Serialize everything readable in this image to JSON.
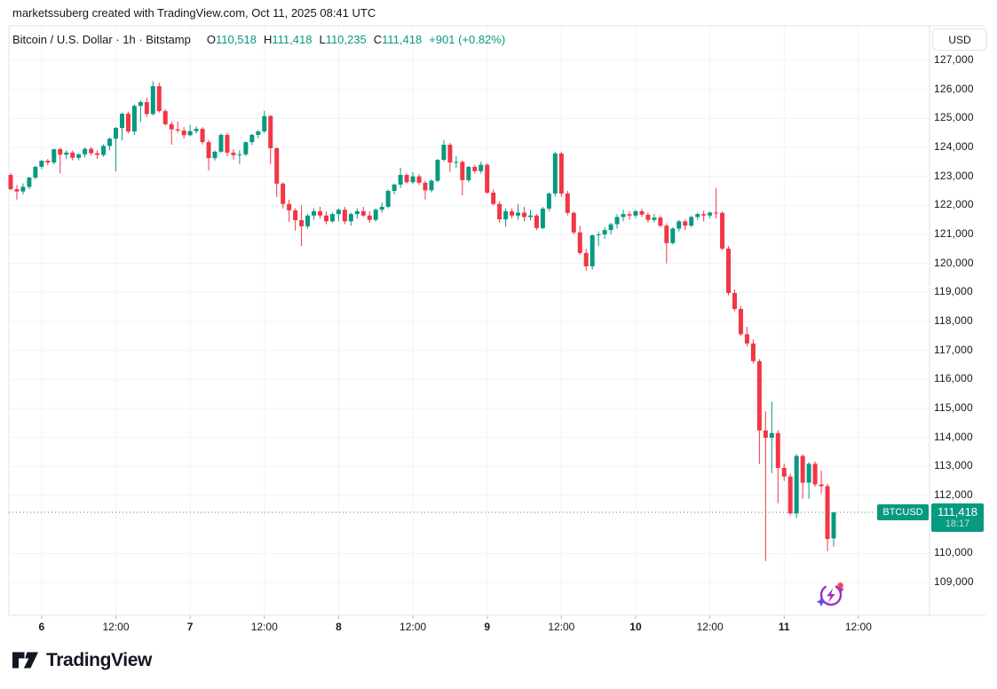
{
  "attribution": {
    "text": "marketssuberg created with TradingView.com, Oct 11, 2025 08:41 UTC"
  },
  "legend": {
    "title": "Bitcoin / U.S. Dollar · 1h · Bitstamp",
    "ohlc": [
      {
        "label": "O",
        "value": "110,518"
      },
      {
        "label": "H",
        "value": "111,418"
      },
      {
        "label": "L",
        "value": "110,235"
      },
      {
        "label": "C",
        "value": "111,418"
      }
    ],
    "change": "+901 (+0.82%)"
  },
  "price_axis": {
    "currency_button": "USD"
  },
  "price_label": {
    "symbol": "BTCUSD",
    "price": "111,418",
    "countdown": "18:17"
  },
  "logo": {
    "text": "TradingView"
  },
  "colors": {
    "up": "#089981",
    "down": "#F23645",
    "text": "#131722",
    "grid": "#F0F3FA",
    "border": "#E0E3EB",
    "tick": "#B2B5BE",
    "spark_purple": "#A02FC0",
    "spark_violet": "#5B4FE9",
    "spark_red": "#F6465D"
  },
  "chart_data": {
    "type": "candlestick",
    "symbol": "BTCUSD",
    "description": "Bitcoin / U.S. Dollar",
    "exchange": "Bitstamp",
    "interval": "1h",
    "first_candle_time": "Oct 5, 2025 19:00 UTC",
    "last_candle_time": "Oct 11, 2025 08:00 UTC",
    "last_price": 111418,
    "ylim": [
      107900,
      128150
    ],
    "grid": true,
    "price_ticks": [
      {
        "label": "127,000",
        "value": 127000
      },
      {
        "label": "126,000",
        "value": 126000
      },
      {
        "label": "125,000",
        "value": 125000
      },
      {
        "label": "124,000",
        "value": 124000
      },
      {
        "label": "123,000",
        "value": 123000
      },
      {
        "label": "122,000",
        "value": 122000
      },
      {
        "label": "121,000",
        "value": 121000
      },
      {
        "label": "120,000",
        "value": 120000
      },
      {
        "label": "119,000",
        "value": 119000
      },
      {
        "label": "118,000",
        "value": 118000
      },
      {
        "label": "117,000",
        "value": 117000
      },
      {
        "label": "116,000",
        "value": 116000
      },
      {
        "label": "115,000",
        "value": 115000
      },
      {
        "label": "114,000",
        "value": 114000
      },
      {
        "label": "113,000",
        "value": 113000
      },
      {
        "label": "112,000",
        "value": 112000
      },
      {
        "label": "110,000",
        "value": 110000
      },
      {
        "label": "109,000",
        "value": 109000
      }
    ],
    "time_ticks": [
      {
        "label": "6",
        "index": 5,
        "bold": true
      },
      {
        "label": "12:00",
        "index": 17,
        "bold": false
      },
      {
        "label": "7",
        "index": 29,
        "bold": true
      },
      {
        "label": "12:00",
        "index": 41,
        "bold": false
      },
      {
        "label": "8",
        "index": 53,
        "bold": true
      },
      {
        "label": "12:00",
        "index": 65,
        "bold": false
      },
      {
        "label": "9",
        "index": 77,
        "bold": true
      },
      {
        "label": "12:00",
        "index": 89,
        "bold": false
      },
      {
        "label": "10",
        "index": 101,
        "bold": true
      },
      {
        "label": "12:00",
        "index": 113,
        "bold": false
      },
      {
        "label": "11",
        "index": 125,
        "bold": true
      },
      {
        "label": "12:00",
        "index": 137,
        "bold": false
      }
    ],
    "candles_ohlc": [
      [
        123050,
        123120,
        122520,
        122560
      ],
      [
        122560,
        122700,
        122200,
        122480
      ],
      [
        122480,
        122760,
        122380,
        122640
      ],
      [
        122640,
        122990,
        122560,
        122960
      ],
      [
        122960,
        123360,
        122900,
        123330
      ],
      [
        123330,
        123560,
        123250,
        123540
      ],
      [
        123540,
        123600,
        123380,
        123480
      ],
      [
        123480,
        123950,
        123420,
        123940
      ],
      [
        123940,
        123990,
        123100,
        123750
      ],
      [
        123750,
        123900,
        123600,
        123820
      ],
      [
        123820,
        123890,
        123550,
        123640
      ],
      [
        123640,
        123800,
        123560,
        123760
      ],
      [
        123760,
        124000,
        123650,
        123950
      ],
      [
        123950,
        124020,
        123720,
        123800
      ],
      [
        123800,
        123900,
        123600,
        123740
      ],
      [
        123740,
        124100,
        123680,
        124050
      ],
      [
        124050,
        124340,
        123900,
        124300
      ],
      [
        124300,
        124700,
        123180,
        124670
      ],
      [
        124670,
        125200,
        124240,
        125160
      ],
      [
        125160,
        125230,
        124490,
        124550
      ],
      [
        124550,
        125470,
        124430,
        125430
      ],
      [
        125430,
        125620,
        124890,
        125560
      ],
      [
        125560,
        125710,
        125050,
        125150
      ],
      [
        125150,
        126270,
        125100,
        126110
      ],
      [
        126110,
        126230,
        125200,
        125250
      ],
      [
        125250,
        125320,
        124750,
        124800
      ],
      [
        124800,
        124900,
        124090,
        124620
      ],
      [
        124620,
        124890,
        124500,
        124580
      ],
      [
        124580,
        124700,
        124300,
        124420
      ],
      [
        124420,
        124780,
        124380,
        124560
      ],
      [
        124560,
        124720,
        124480,
        124640
      ],
      [
        124640,
        124700,
        124100,
        124180
      ],
      [
        124180,
        124260,
        123200,
        123630
      ],
      [
        123630,
        123900,
        123550,
        123850
      ],
      [
        123850,
        124480,
        123800,
        124430
      ],
      [
        124430,
        124500,
        123700,
        123820
      ],
      [
        123820,
        123940,
        123580,
        123730
      ],
      [
        123730,
        123900,
        123420,
        123760
      ],
      [
        123760,
        124200,
        123700,
        124180
      ],
      [
        124180,
        124470,
        124080,
        124430
      ],
      [
        124430,
        124600,
        124310,
        124550
      ],
      [
        124550,
        125260,
        124500,
        125080
      ],
      [
        125080,
        125120,
        123420,
        123970
      ],
      [
        123970,
        124000,
        122290,
        122750
      ],
      [
        122750,
        122800,
        121900,
        122050
      ],
      [
        122050,
        122200,
        121430,
        121830
      ],
      [
        121830,
        121900,
        121130,
        121490
      ],
      [
        121490,
        122000,
        120600,
        121280
      ],
      [
        121280,
        121700,
        121200,
        121650
      ],
      [
        121650,
        121900,
        121500,
        121800
      ],
      [
        121800,
        121950,
        121550,
        121650
      ],
      [
        121650,
        121800,
        121350,
        121450
      ],
      [
        121450,
        121750,
        121400,
        121700
      ],
      [
        121700,
        121900,
        121450,
        121850
      ],
      [
        121850,
        121950,
        121350,
        121450
      ],
      [
        121450,
        121750,
        121300,
        121700
      ],
      [
        121700,
        121900,
        121550,
        121800
      ],
      [
        121800,
        121950,
        121600,
        121650
      ],
      [
        121650,
        121800,
        121400,
        121500
      ],
      [
        121500,
        121900,
        121450,
        121850
      ],
      [
        121850,
        122100,
        121750,
        121950
      ],
      [
        121950,
        122550,
        121900,
        122500
      ],
      [
        122500,
        122760,
        122380,
        122720
      ],
      [
        122720,
        123300,
        122600,
        123050
      ],
      [
        123050,
        123100,
        122750,
        122800
      ],
      [
        122800,
        123150,
        122740,
        123000
      ],
      [
        123000,
        123080,
        122700,
        122780
      ],
      [
        122780,
        122850,
        122200,
        122520
      ],
      [
        122520,
        122900,
        122450,
        122850
      ],
      [
        122850,
        123600,
        122800,
        123570
      ],
      [
        123570,
        124250,
        123520,
        124090
      ],
      [
        124090,
        124150,
        123150,
        123480
      ],
      [
        123480,
        123700,
        123300,
        123500
      ],
      [
        123500,
        123550,
        122350,
        122870
      ],
      [
        122870,
        123350,
        122800,
        123330
      ],
      [
        123330,
        123400,
        123100,
        123180
      ],
      [
        123180,
        123500,
        123100,
        123400
      ],
      [
        123400,
        123450,
        122400,
        122440
      ],
      [
        122440,
        122550,
        122000,
        122050
      ],
      [
        122050,
        122150,
        121400,
        121520
      ],
      [
        121520,
        121900,
        121260,
        121800
      ],
      [
        121800,
        121900,
        121550,
        121650
      ],
      [
        121650,
        122050,
        121500,
        121750
      ],
      [
        121750,
        121950,
        121450,
        121600
      ],
      [
        121600,
        121850,
        121480,
        121650
      ],
      [
        121650,
        121700,
        121150,
        121220
      ],
      [
        121220,
        121950,
        121180,
        121890
      ],
      [
        121890,
        122450,
        121800,
        122410
      ],
      [
        122410,
        123850,
        122300,
        123790
      ],
      [
        123790,
        123850,
        122300,
        122410
      ],
      [
        122410,
        122500,
        121650,
        121740
      ],
      [
        121740,
        121800,
        121000,
        121070
      ],
      [
        121070,
        121300,
        120300,
        120360
      ],
      [
        120360,
        120500,
        119750,
        119900
      ],
      [
        119900,
        121000,
        119780,
        120970
      ],
      [
        120970,
        121100,
        120600,
        121000
      ],
      [
        121000,
        121250,
        120850,
        121150
      ],
      [
        121150,
        121400,
        121000,
        121350
      ],
      [
        121350,
        121700,
        121200,
        121600
      ],
      [
        121600,
        121850,
        121450,
        121700
      ],
      [
        121700,
        121800,
        121500,
        121650
      ],
      [
        121650,
        121850,
        121550,
        121800
      ],
      [
        121800,
        121880,
        121600,
        121680
      ],
      [
        121680,
        121750,
        121400,
        121500
      ],
      [
        121500,
        121700,
        121420,
        121580
      ],
      [
        121580,
        121650,
        121250,
        121300
      ],
      [
        121300,
        121380,
        120000,
        120700
      ],
      [
        120700,
        121250,
        120650,
        121200
      ],
      [
        121200,
        121500,
        121100,
        121450
      ],
      [
        121450,
        121520,
        121150,
        121300
      ],
      [
        121300,
        121650,
        121250,
        121600
      ],
      [
        121600,
        121750,
        121500,
        121700
      ],
      [
        121700,
        121820,
        121450,
        121650
      ],
      [
        121650,
        121800,
        121550,
        121750
      ],
      [
        121750,
        122600,
        121550,
        121740
      ],
      [
        121740,
        121800,
        120450,
        120510
      ],
      [
        120510,
        120600,
        118900,
        118980
      ],
      [
        118980,
        119100,
        118350,
        118430
      ],
      [
        118430,
        118520,
        117500,
        117560
      ],
      [
        117560,
        117820,
        117150,
        117240
      ],
      [
        117240,
        117380,
        116550,
        116630
      ],
      [
        116630,
        116700,
        113080,
        114240
      ],
      [
        114240,
        114900,
        109740,
        113990
      ],
      [
        113990,
        115230,
        112770,
        114150
      ],
      [
        114150,
        114250,
        111730,
        112950
      ],
      [
        112950,
        113100,
        112500,
        112650
      ],
      [
        112650,
        112750,
        111310,
        111380
      ],
      [
        111380,
        113430,
        111220,
        113360
      ],
      [
        113360,
        113420,
        111880,
        112440
      ],
      [
        112440,
        113150,
        111890,
        113090
      ],
      [
        113090,
        113170,
        112300,
        112380
      ],
      [
        112380,
        112850,
        112050,
        112320
      ],
      [
        112320,
        112400,
        110080,
        110500
      ],
      [
        110518,
        111418,
        110235,
        111418
      ]
    ]
  }
}
